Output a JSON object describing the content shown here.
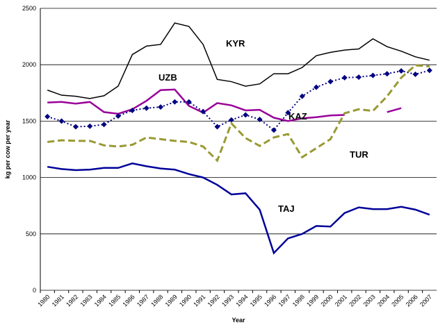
{
  "chart_data": {
    "type": "line",
    "x_label": "Year",
    "y_label": "kg per cow per year",
    "categories": [
      "1980",
      "1981",
      "1982",
      "1983",
      "1984",
      "1985",
      "1986",
      "1987",
      "1988",
      "1989",
      "1990",
      "1991",
      "1992",
      "1993",
      "1994",
      "1995",
      "1996",
      "1997",
      "1998",
      "1999",
      "2000",
      "2001",
      "2002",
      "2003",
      "2004",
      "2005",
      "2006",
      "2007"
    ],
    "ylim": [
      0,
      2500
    ],
    "yticks": [
      0,
      500,
      1000,
      1500,
      2000,
      2500
    ],
    "grid": true,
    "series": [
      {
        "name": "KYR",
        "color": "#000000",
        "style": "solid",
        "values": [
          1775,
          1730,
          1720,
          1700,
          1725,
          1810,
          2090,
          2165,
          2180,
          2370,
          2340,
          2180,
          1870,
          1850,
          1810,
          1830,
          1920,
          1920,
          1975,
          2080,
          2110,
          2130,
          2140,
          2230,
          2160,
          2120,
          2070,
          2040
        ]
      },
      {
        "name": "UZB",
        "color": "#990099",
        "style": "solid",
        "values": [
          1665,
          1670,
          1655,
          1670,
          1580,
          1565,
          1605,
          1680,
          1775,
          1780,
          1635,
          1575,
          1660,
          1640,
          1595,
          1600,
          1530,
          1500,
          1525,
          1535,
          1550,
          1555,
          null,
          null,
          1580,
          1615,
          null,
          null
        ]
      },
      {
        "name": "KAZ",
        "color": "#000080",
        "style": "dotted",
        "marker": "diamond",
        "values": [
          1540,
          1500,
          1450,
          1455,
          1470,
          1545,
          1595,
          1615,
          1625,
          1670,
          1670,
          1585,
          1450,
          1510,
          1555,
          1515,
          1420,
          1575,
          1720,
          1800,
          1850,
          1885,
          1890,
          1905,
          1920,
          1945,
          1915,
          1950
        ]
      },
      {
        "name": "TUR",
        "color": "#999933",
        "style": "dashed",
        "values": [
          1315,
          1330,
          1325,
          1325,
          1285,
          1275,
          1290,
          1355,
          1340,
          1325,
          1315,
          1275,
          1150,
          1480,
          1350,
          1280,
          1355,
          1385,
          1180,
          1260,
          1340,
          1570,
          1605,
          1590,
          1720,
          1885,
          1995,
          1985
        ]
      },
      {
        "name": "TAJ",
        "color": "#000099",
        "style": "solid",
        "values": [
          1095,
          1075,
          1065,
          1070,
          1085,
          1085,
          1125,
          1100,
          1080,
          1070,
          1030,
          1000,
          935,
          850,
          860,
          715,
          330,
          460,
          500,
          570,
          565,
          685,
          735,
          720,
          720,
          740,
          715,
          670
        ]
      }
    ]
  }
}
